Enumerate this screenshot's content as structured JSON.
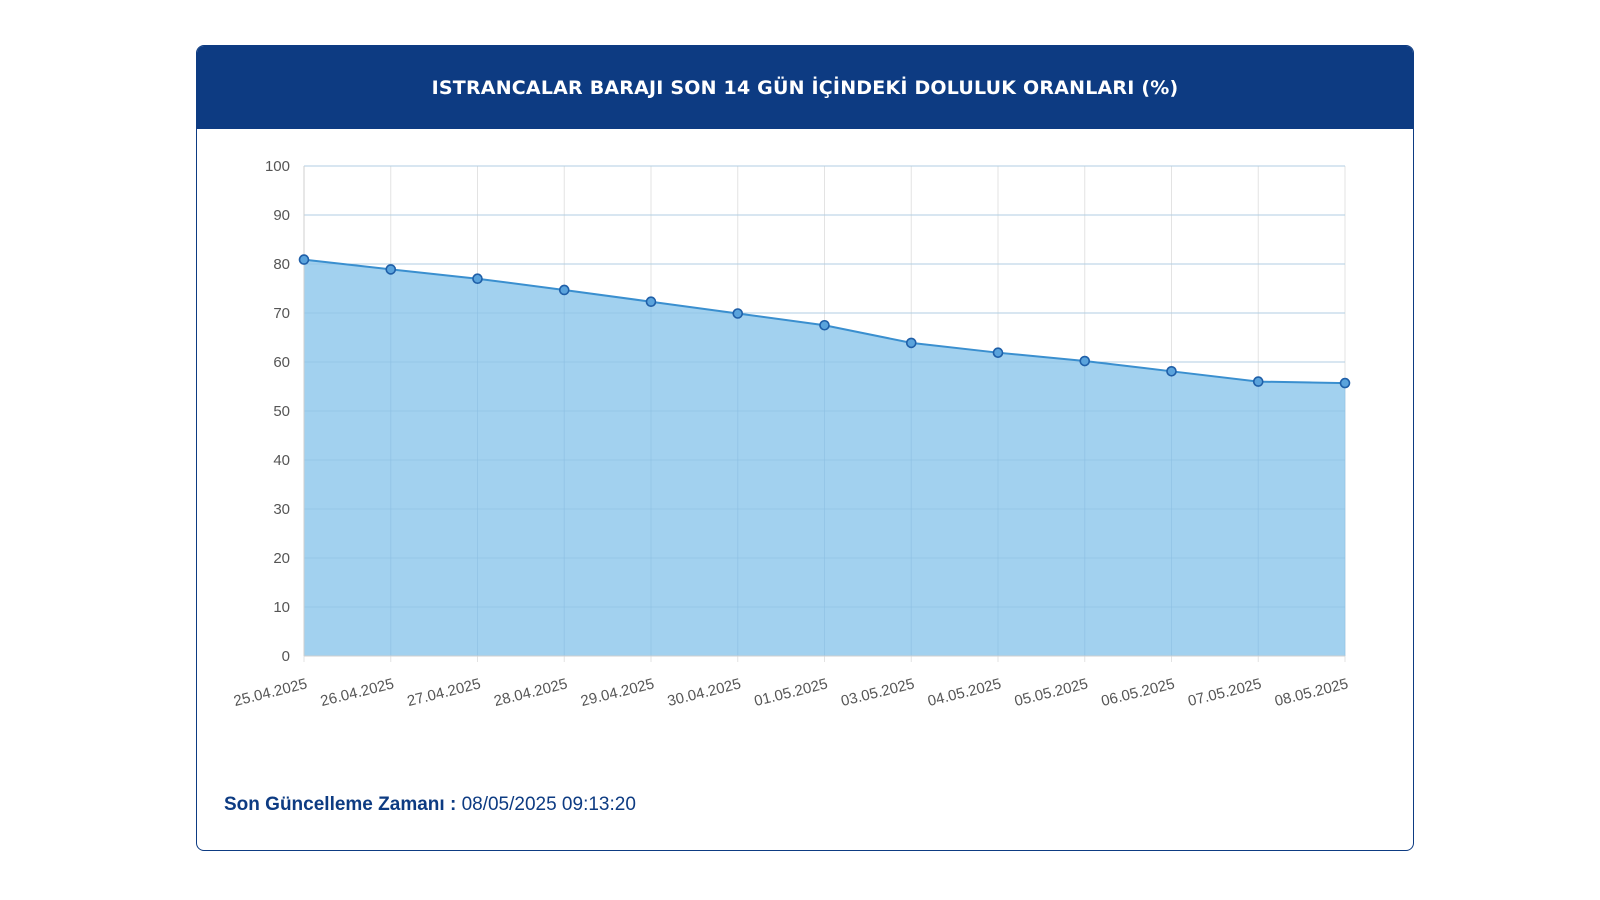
{
  "card": {
    "title": "ISTRANCALAR BARAJI SON 14 GÜN İÇİNDEKİ DOLULUK ORANLARI (%)",
    "footer_label": "Son Güncelleme Zamanı :",
    "footer_value": "08/05/2025 09:13:20"
  },
  "colors": {
    "header": "#0d3b82",
    "area_fill": "#9dcfee",
    "line": "#3a8fcf",
    "point_fill": "#5aa3dc",
    "point_stroke": "#1f5fa8"
  },
  "chart_data": {
    "type": "area",
    "title": "ISTRANCALAR BARAJI SON 14 GÜN İÇİNDEKİ DOLULUK ORANLARI (%)",
    "categories": [
      "25.04.2025",
      "26.04.2025",
      "27.04.2025",
      "28.04.2025",
      "29.04.2025",
      "30.04.2025",
      "01.05.2025",
      "03.05.2025",
      "04.05.2025",
      "05.05.2025",
      "06.05.2025",
      "07.05.2025",
      "08.05.2025"
    ],
    "values": [
      80.9,
      78.9,
      77.0,
      74.7,
      72.3,
      69.9,
      67.5,
      63.9,
      61.9,
      60.2,
      58.1,
      56.0,
      55.7
    ],
    "ylim": [
      0,
      100
    ],
    "yticks": [
      "0",
      "10",
      "20",
      "30",
      "40",
      "50",
      "60",
      "70",
      "80",
      "90",
      "100"
    ],
    "grid": true,
    "xlabel": "",
    "ylabel": ""
  }
}
